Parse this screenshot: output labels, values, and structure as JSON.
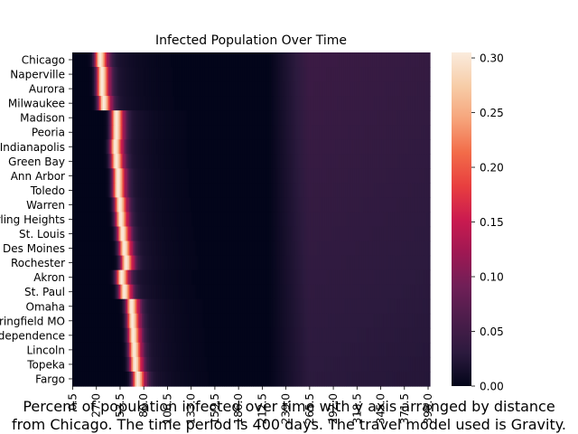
{
  "chart_data": {
    "type": "heatmap",
    "title": "Infected Population Over Time",
    "xlabel": "",
    "ylabel": "",
    "y_tick_labels": [
      "Chicago",
      "Naperville",
      "Aurora",
      "Milwaukee",
      "Madison",
      "Peoria",
      "Indianapolis",
      "Green Bay",
      "Ann Arbor",
      "Toledo",
      "Warren",
      "Sterling Heights",
      "St. Louis",
      "Des Moines",
      "Rochester",
      "Akron",
      "St. Paul",
      "Omaha",
      "Springfield MO",
      "Independence",
      "Lincoln",
      "Topeka",
      "Fargo"
    ],
    "x_tick_labels": [
      "0.5",
      "27.0",
      "53.5",
      "80.0",
      "106.5",
      "133.0",
      "159.5",
      "186.0",
      "212.5",
      "239.0",
      "265.5",
      "292.0",
      "318.5",
      "345.0",
      "371.5",
      "398.0"
    ],
    "x_range": [
      0,
      400
    ],
    "colorbar": {
      "ticks": [
        "0.00",
        "0.05",
        "0.10",
        "0.15",
        "0.20",
        "0.25",
        "0.30"
      ],
      "range": [
        0,
        0.305
      ]
    },
    "colormap": [
      "#03051a",
      "#2c1a3e",
      "#4c1d4b",
      "#701f57",
      "#9f1853",
      "#cb1b4f",
      "#e83f3f",
      "#f26c49",
      "#f6a47b",
      "#f7cda8",
      "#faebdd"
    ],
    "peak_day_by_row": [
      31,
      33,
      33,
      35,
      49,
      49,
      48,
      49,
      51,
      51,
      53,
      54,
      56,
      58,
      60,
      55,
      58,
      66,
      67,
      68,
      69,
      70,
      73
    ],
    "peak_value": 0.305,
    "late_plateau": {
      "start_day": 220,
      "peak_day": 265,
      "end_day": 398,
      "value_top_rows": 0.045,
      "value_bottom_rows": 0.03
    }
  },
  "caption": {
    "line1": "Percent of population infected over time with y axis arranged by distance",
    "line2": "from Chicago. The time period is 400 days. The travel model used is Gravity."
  }
}
